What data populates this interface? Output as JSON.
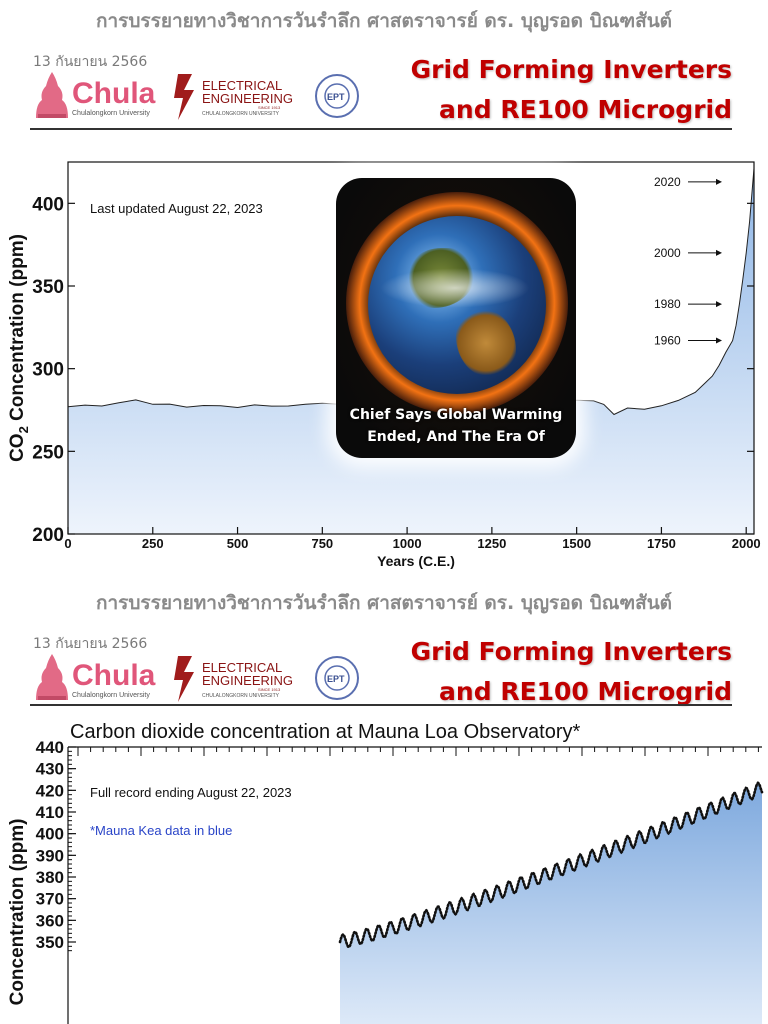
{
  "header": {
    "lecture_title": "การบรรยายทางวิชาการวันรำลึก ศาสตราจารย์ ดร. บุญรอด บิณฑสันต์",
    "date": "13 กันยายน 2566",
    "talk_title_line1": "Grid Forming Inverters",
    "talk_title_line2": "and RE100 Microgrid",
    "logo_chula_text": "Chula",
    "logo_chula_sub": "Chulalongkorn University",
    "logo_ee_line1": "ELECTRICAL",
    "logo_ee_line2": "ENGINEERING",
    "logo_ee_since": "SINCE 1913",
    "logo_ee_sub": "CHULALONGKORN UNIVERSITY",
    "logo_ept_text": "EPT"
  },
  "photo": {
    "caption_line1": "Chief Says Global Warming",
    "caption_line2": "Ended, And The Era Of"
  },
  "chart_data": [
    {
      "type": "area",
      "title": "",
      "ylabel": "CO₂ Concentration (ppm)",
      "ylabel_main": "CO",
      "ylabel_sub": "2",
      "ylabel_rest": " Concentration (ppm)",
      "xlabel": "Years (C.E.)",
      "annotation": "Last updated August 22, 2023",
      "xlim": [
        0,
        2023
      ],
      "ylim": [
        200,
        425
      ],
      "xticks": [
        0,
        250,
        500,
        750,
        1000,
        1250,
        1500,
        1750,
        2000
      ],
      "yticks": [
        200,
        250,
        300,
        350,
        400
      ],
      "series_x": [
        0,
        50,
        100,
        150,
        200,
        250,
        300,
        350,
        400,
        450,
        500,
        550,
        600,
        650,
        700,
        750,
        800,
        850,
        900,
        950,
        1000,
        1050,
        1100,
        1150,
        1200,
        1250,
        1300,
        1350,
        1400,
        1450,
        1500,
        1550,
        1580,
        1610,
        1650,
        1700,
        1750,
        1800,
        1850,
        1880,
        1900,
        1920,
        1940,
        1960,
        1970,
        1980,
        1990,
        2000,
        2010,
        2020,
        2023
      ],
      "series_y": [
        277,
        277.5,
        278,
        279,
        281,
        279,
        278,
        277,
        278,
        277,
        277,
        278,
        277,
        278,
        278,
        279,
        279,
        280,
        279,
        280,
        280,
        281,
        282,
        281,
        282,
        282,
        282,
        281,
        281,
        280,
        281,
        280,
        279,
        272,
        276,
        276,
        277,
        281,
        286,
        291,
        296,
        302,
        310,
        317,
        326,
        339,
        354,
        370,
        389,
        414,
        421
      ],
      "arrow_labels": [
        {
          "label": "2020",
          "y": 413
        },
        {
          "label": "2000",
          "y": 370
        },
        {
          "label": "1980",
          "y": 339
        },
        {
          "label": "1960",
          "y": 317
        }
      ]
    },
    {
      "type": "line",
      "title": "Carbon dioxide concentration at Mauna Loa Observatory*",
      "ylabel": "Concentration (ppm)",
      "annotation": "Full record ending August 22, 2023",
      "note": "*Mauna Kea data in blue",
      "ylim": [
        345,
        440
      ],
      "yticks": [
        350,
        360,
        370,
        380,
        390,
        400,
        410,
        420,
        430,
        440
      ],
      "series": [
        {
          "x_start": 1988,
          "x_end": 2023.6,
          "trend_start": 350,
          "trend_end": 421,
          "amplitude": 3.2
        }
      ]
    }
  ]
}
